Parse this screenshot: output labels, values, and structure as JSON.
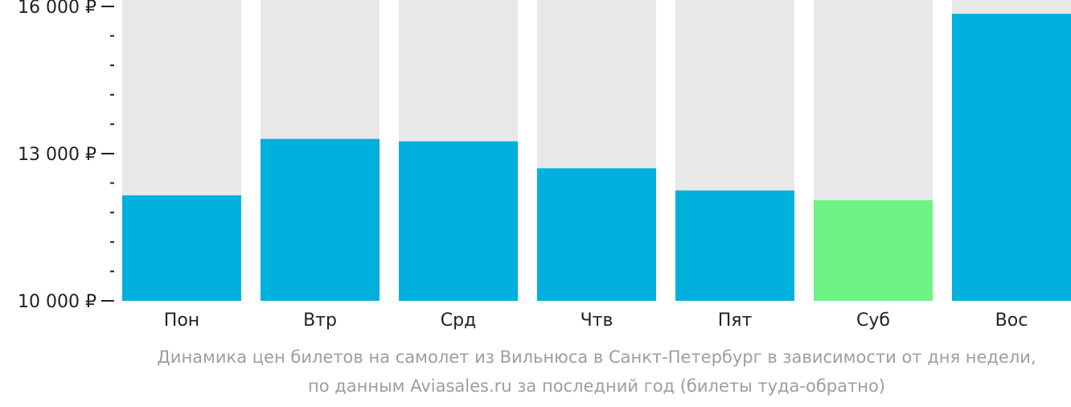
{
  "chart_data": {
    "type": "bar",
    "categories": [
      "Пон",
      "Втр",
      "Срд",
      "Чтв",
      "Пят",
      "Суб",
      "Вос"
    ],
    "values": [
      12150,
      13300,
      13250,
      12700,
      12250,
      12050,
      15850
    ],
    "highlight_category": "Суб",
    "ylim": [
      10000,
      16000
    ],
    "yticks": [
      {
        "value": 16000,
        "label": "16 000 ₽"
      },
      {
        "value": 13000,
        "label": "13 000 ₽"
      },
      {
        "value": 10000,
        "label": "10 000 ₽"
      }
    ],
    "minor_tick_step": 600,
    "colors": {
      "bar": "#00b0dd",
      "highlight": "#6ef283",
      "background_bar": "#e8e8e8",
      "axis_text": "#222222",
      "caption": "#9e9e9e"
    },
    "caption_line1": "Динамика цен билетов на самолет из Вильнюса в Санкт-Петербург в зависимости от дня недели,",
    "caption_line2": "по данным Aviasales.ru за последний год (билеты туда-обратно)"
  }
}
